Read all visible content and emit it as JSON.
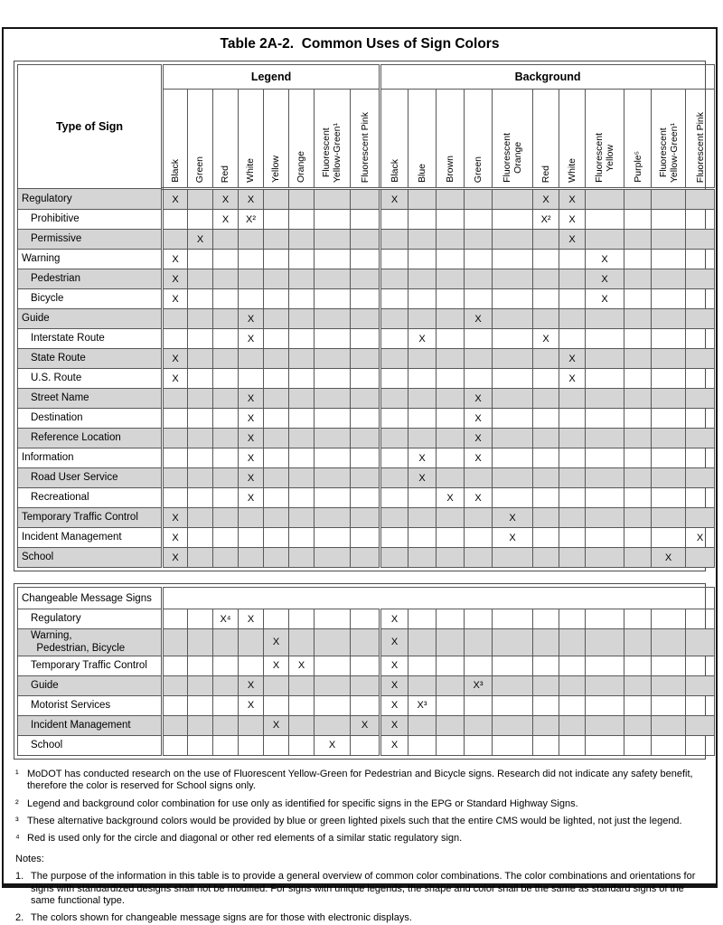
{
  "page_title": "Table 2A-2.  Common Uses of Sign Colors",
  "colors": {
    "row_shade": "#d5d5d5",
    "grid_border": "#575757",
    "page_border": "#141414"
  },
  "main_table": {
    "corner_header": "Type of Sign",
    "groups": [
      {
        "label": "Legend",
        "columns": [
          "Black",
          "Green",
          "Red",
          "White",
          "Yellow",
          "Orange",
          "Fluorescent\nYellow-Green¹",
          "Fluorescent Pink"
        ]
      },
      {
        "label": "Background",
        "columns": [
          "Black",
          "Blue",
          "Brown",
          "Green",
          "Fluorescent\nOrange",
          "Red",
          "White",
          "Fluorescent\nYellow",
          "Purple⁵",
          "Fluorescent\nYellow-Green¹",
          "Fluorescent Pink"
        ]
      }
    ],
    "rows": [
      {
        "label": "Regulatory",
        "indent": false,
        "shaded": true,
        "legend": [
          "X",
          "",
          "X",
          "X",
          "",
          "",
          "",
          ""
        ],
        "background": [
          "X",
          "",
          "",
          "",
          "",
          "X",
          "X",
          "",
          "",
          "",
          ""
        ]
      },
      {
        "label": "Prohibitive",
        "indent": true,
        "shaded": false,
        "legend": [
          "",
          "",
          "X",
          "X²",
          "",
          "",
          "",
          ""
        ],
        "background": [
          "",
          "",
          "",
          "",
          "",
          "X²",
          "X",
          "",
          "",
          "",
          ""
        ]
      },
      {
        "label": "Permissive",
        "indent": true,
        "shaded": true,
        "legend": [
          "",
          "X",
          "",
          "",
          "",
          "",
          "",
          ""
        ],
        "background": [
          "",
          "",
          "",
          "",
          "",
          "",
          "X",
          "",
          "",
          "",
          ""
        ]
      },
      {
        "label": "Warning",
        "indent": false,
        "shaded": false,
        "legend": [
          "X",
          "",
          "",
          "",
          "",
          "",
          "",
          ""
        ],
        "background": [
          "",
          "",
          "",
          "",
          "",
          "",
          "",
          "X",
          "",
          "",
          ""
        ]
      },
      {
        "label": "Pedestrian",
        "indent": true,
        "shaded": true,
        "legend": [
          "X",
          "",
          "",
          "",
          "",
          "",
          "",
          ""
        ],
        "background": [
          "",
          "",
          "",
          "",
          "",
          "",
          "",
          "X",
          "",
          "",
          ""
        ]
      },
      {
        "label": "Bicycle",
        "indent": true,
        "shaded": false,
        "legend": [
          "X",
          "",
          "",
          "",
          "",
          "",
          "",
          ""
        ],
        "background": [
          "",
          "",
          "",
          "",
          "",
          "",
          "",
          "X",
          "",
          "",
          ""
        ]
      },
      {
        "label": "Guide",
        "indent": false,
        "shaded": true,
        "legend": [
          "",
          "",
          "",
          "X",
          "",
          "",
          "",
          ""
        ],
        "background": [
          "",
          "",
          "",
          "X",
          "",
          "",
          "",
          "",
          "",
          "",
          ""
        ]
      },
      {
        "label": "Interstate Route",
        "indent": true,
        "shaded": false,
        "legend": [
          "",
          "",
          "",
          "X",
          "",
          "",
          "",
          ""
        ],
        "background": [
          "",
          "X",
          "",
          "",
          "",
          "X",
          "",
          "",
          "",
          "",
          ""
        ]
      },
      {
        "label": "State Route",
        "indent": true,
        "shaded": true,
        "legend": [
          "X",
          "",
          "",
          "",
          "",
          "",
          "",
          ""
        ],
        "background": [
          "",
          "",
          "",
          "",
          "",
          "",
          "X",
          "",
          "",
          "",
          ""
        ]
      },
      {
        "label": "U.S. Route",
        "indent": true,
        "shaded": false,
        "legend": [
          "X",
          "",
          "",
          "",
          "",
          "",
          "",
          ""
        ],
        "background": [
          "",
          "",
          "",
          "",
          "",
          "",
          "X",
          "",
          "",
          "",
          ""
        ]
      },
      {
        "label": "Street Name",
        "indent": true,
        "shaded": true,
        "legend": [
          "",
          "",
          "",
          "X",
          "",
          "",
          "",
          ""
        ],
        "background": [
          "",
          "",
          "",
          "X",
          "",
          "",
          "",
          "",
          "",
          "",
          ""
        ]
      },
      {
        "label": "Destination",
        "indent": true,
        "shaded": false,
        "legend": [
          "",
          "",
          "",
          "X",
          "",
          "",
          "",
          ""
        ],
        "background": [
          "",
          "",
          "",
          "X",
          "",
          "",
          "",
          "",
          "",
          "",
          ""
        ]
      },
      {
        "label": "Reference Location",
        "indent": true,
        "shaded": true,
        "legend": [
          "",
          "",
          "",
          "X",
          "",
          "",
          "",
          ""
        ],
        "background": [
          "",
          "",
          "",
          "X",
          "",
          "",
          "",
          "",
          "",
          "",
          ""
        ]
      },
      {
        "label": "Information",
        "indent": false,
        "shaded": false,
        "legend": [
          "",
          "",
          "",
          "X",
          "",
          "",
          "",
          ""
        ],
        "background": [
          "",
          "X",
          "",
          "X",
          "",
          "",
          "",
          "",
          "",
          "",
          ""
        ]
      },
      {
        "label": "Road User Service",
        "indent": true,
        "shaded": true,
        "legend": [
          "",
          "",
          "",
          "X",
          "",
          "",
          "",
          ""
        ],
        "background": [
          "",
          "X",
          "",
          "",
          "",
          "",
          "",
          "",
          "",
          "",
          ""
        ]
      },
      {
        "label": "Recreational",
        "indent": true,
        "shaded": false,
        "legend": [
          "",
          "",
          "",
          "X",
          "",
          "",
          "",
          ""
        ],
        "background": [
          "",
          "",
          "X",
          "X",
          "",
          "",
          "",
          "",
          "",
          "",
          ""
        ]
      },
      {
        "label": "Temporary Traffic Control",
        "indent": false,
        "shaded": true,
        "legend": [
          "X",
          "",
          "",
          "",
          "",
          "",
          "",
          ""
        ],
        "background": [
          "",
          "",
          "",
          "",
          "X",
          "",
          "",
          "",
          "",
          "",
          ""
        ]
      },
      {
        "label": "Incident Management",
        "indent": false,
        "shaded": false,
        "legend": [
          "X",
          "",
          "",
          "",
          "",
          "",
          "",
          ""
        ],
        "background": [
          "",
          "",
          "",
          "",
          "X",
          "",
          "",
          "",
          "",
          "",
          "X"
        ]
      },
      {
        "label": "School",
        "indent": false,
        "shaded": true,
        "legend": [
          "X",
          "",
          "",
          "",
          "",
          "",
          "",
          ""
        ],
        "background": [
          "",
          "",
          "",
          "",
          "",
          "",
          "",
          "",
          "",
          "X",
          ""
        ]
      }
    ]
  },
  "cms_table": {
    "header": "Changeable Message Signs",
    "rows": [
      {
        "label": "Regulatory",
        "indent": true,
        "shaded": false,
        "legend": [
          "",
          "",
          "X⁴",
          "X",
          "",
          "",
          "",
          ""
        ],
        "background": [
          "X",
          "",
          "",
          "",
          "",
          "",
          "",
          "",
          "",
          "",
          ""
        ]
      },
      {
        "label": "Warning,\n  Pedestrian, Bicycle",
        "indent": true,
        "shaded": true,
        "legend": [
          "",
          "",
          "",
          "",
          "X",
          "",
          "",
          ""
        ],
        "background": [
          "X",
          "",
          "",
          "",
          "",
          "",
          "",
          "",
          "",
          "",
          ""
        ]
      },
      {
        "label": "Temporary Traffic Control",
        "indent": true,
        "shaded": false,
        "legend": [
          "",
          "",
          "",
          "",
          "X",
          "X",
          "",
          ""
        ],
        "background": [
          "X",
          "",
          "",
          "",
          "",
          "",
          "",
          "",
          "",
          "",
          ""
        ]
      },
      {
        "label": "Guide",
        "indent": true,
        "shaded": true,
        "legend": [
          "",
          "",
          "",
          "X",
          "",
          "",
          "",
          ""
        ],
        "background": [
          "X",
          "",
          "",
          "X³",
          "",
          "",
          "",
          "",
          "",
          "",
          ""
        ]
      },
      {
        "label": "Motorist Services",
        "indent": true,
        "shaded": false,
        "legend": [
          "",
          "",
          "",
          "X",
          "",
          "",
          "",
          ""
        ],
        "background": [
          "X",
          "X³",
          "",
          "",
          "",
          "",
          "",
          "",
          "",
          "",
          ""
        ]
      },
      {
        "label": "Incident Management",
        "indent": true,
        "shaded": true,
        "legend": [
          "",
          "",
          "",
          "",
          "X",
          "",
          "",
          "X"
        ],
        "background": [
          "X",
          "",
          "",
          "",
          "",
          "",
          "",
          "",
          "",
          "",
          ""
        ]
      },
      {
        "label": "School",
        "indent": true,
        "shaded": false,
        "legend": [
          "",
          "",
          "",
          "",
          "",
          "",
          "X",
          ""
        ],
        "background": [
          "X",
          "",
          "",
          "",
          "",
          "",
          "",
          "",
          "",
          "",
          ""
        ]
      }
    ]
  },
  "footnotes": [
    {
      "marker": "¹",
      "text": "MoDOT has conducted research on the use of Fluorescent Yellow-Green for Pedestrian and Bicycle signs. Research did not indicate any safety benefit, therefore the color is reserved for School signs only."
    },
    {
      "marker": "²",
      "text": "Legend and background color combination for use only as identified for specific signs in the EPG or Standard Highway Signs."
    },
    {
      "marker": "³",
      "text": "These alternative background colors would be provided by blue or green lighted pixels such that the entire CMS would be lighted, not just the legend."
    },
    {
      "marker": "⁴",
      "text": "Red is used only for the circle and diagonal or other red elements of a similar static regulatory sign."
    }
  ],
  "notes_label": "Notes:",
  "notes": [
    {
      "marker": "1.",
      "text": "The purpose of the information in this table is to provide a general overview of common color combinations. The color combinations and orientations for signs with standardized designs shall not be modified. For signs with unique legends, the shape and color shall be the same as standard signs of the same functional type."
    },
    {
      "marker": "2.",
      "text": "The colors shown for changeable message signs are for those with electronic displays."
    }
  ]
}
